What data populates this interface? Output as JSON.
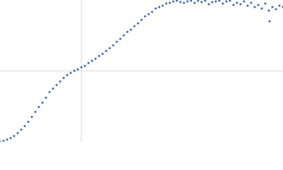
{
  "chart_data": {
    "type": "scatter",
    "color": "#3d66b0",
    "x": [
      0,
      5,
      10,
      15,
      20,
      25,
      30,
      35,
      40,
      45,
      50,
      55,
      60,
      65,
      70,
      75,
      80,
      85,
      90,
      95,
      100,
      105,
      110,
      115,
      120,
      125,
      130,
      135,
      140,
      145,
      150,
      155,
      160,
      165,
      170,
      175,
      180,
      185,
      190,
      195,
      200,
      205,
      210,
      215,
      220,
      225,
      230,
      235,
      240,
      245,
      250,
      255,
      260,
      265,
      270,
      275,
      280,
      285,
      290,
      295,
      300,
      305,
      310,
      315,
      320,
      325,
      330,
      335,
      340,
      345,
      350,
      355,
      360,
      365,
      370,
      375,
      380,
      381,
      385,
      390,
      395,
      400
    ],
    "y": [
      0,
      1,
      3,
      5,
      8,
      12,
      17,
      22,
      28,
      35,
      42,
      49,
      55,
      62,
      70,
      75,
      80,
      85,
      90,
      94,
      97,
      100,
      102,
      105,
      107,
      111,
      114,
      117,
      121,
      124,
      128,
      132,
      136,
      141,
      145,
      150,
      155,
      158,
      163,
      167,
      172,
      177,
      180,
      183,
      188,
      190,
      192,
      195,
      196,
      198,
      199,
      197,
      196,
      198,
      199,
      196,
      199,
      197,
      199,
      194,
      197,
      198,
      199,
      195,
      198,
      199,
      193,
      196,
      194,
      198,
      192,
      196,
      190,
      193,
      188,
      195,
      185,
      170,
      190,
      187,
      192,
      190
    ],
    "xlim": [
      0,
      400
    ],
    "ylim": [
      0,
      200
    ],
    "xticks": [
      115
    ],
    "yticks": [
      100
    ],
    "grid": true
  }
}
